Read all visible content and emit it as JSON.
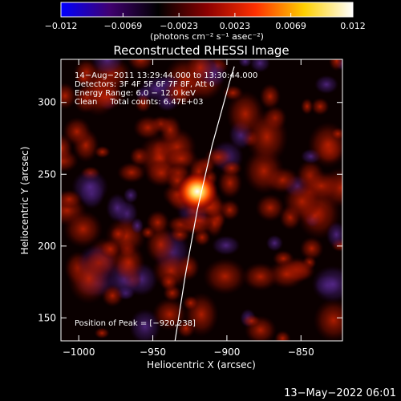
{
  "chart_data": {
    "type": "heatmap",
    "title": "Reconstructed RHESSI Image",
    "xlabel": "Heliocentric X (arcsec)",
    "ylabel": "Heliocentric Y (arcsec)",
    "xlim": [
      -1012,
      -822
    ],
    "ylim": [
      134,
      330
    ],
    "x_ticks": [
      -1000,
      -950,
      -900,
      -850
    ],
    "x_tick_labels": [
      "−1000",
      "−950",
      "−900",
      "−850"
    ],
    "y_ticks": [
      150,
      200,
      250,
      300
    ],
    "y_tick_labels": [
      "150",
      "200",
      "250",
      "300"
    ],
    "colorbar": {
      "range": [
        -0.012,
        0.012
      ],
      "ticks": [
        -0.012,
        -0.0069,
        -0.0023,
        0.0023,
        0.0069,
        0.012
      ],
      "tick_labels": [
        "−0.012",
        "−0.0069",
        "−0.0023",
        "0.0023",
        "0.0069",
        "0.012"
      ],
      "units_label": "(photons cm⁻² s⁻¹ asec⁻²)",
      "colors": [
        "#0000ff",
        "#400070",
        "#000000",
        "#8b0000",
        "#ff3000",
        "#ffd000",
        "#ffffff"
      ]
    },
    "annotations": [
      "14−Aug−2011 13:29:44.000 to 13:30:44.000",
      "Detectors: 3F 4F 5F 6F 7F 8F, Att 0",
      "Energy Range: 6.0 − 12.0 keV",
      "Clean     Total counts: 6.47E+03"
    ],
    "peak_label": "Position of Peak = [−920,238]",
    "peak": {
      "x": -920,
      "y": 238,
      "value": 0.012
    },
    "limb_points": [
      [
        -935,
        134
      ],
      [
        -928,
        180
      ],
      [
        -920,
        225
      ],
      [
        -910,
        270
      ],
      [
        -898,
        315
      ],
      [
        -895,
        325
      ]
    ],
    "limb_color": "#ffffff",
    "grid": false
  },
  "timestamp": "13−May−2022 06:01"
}
